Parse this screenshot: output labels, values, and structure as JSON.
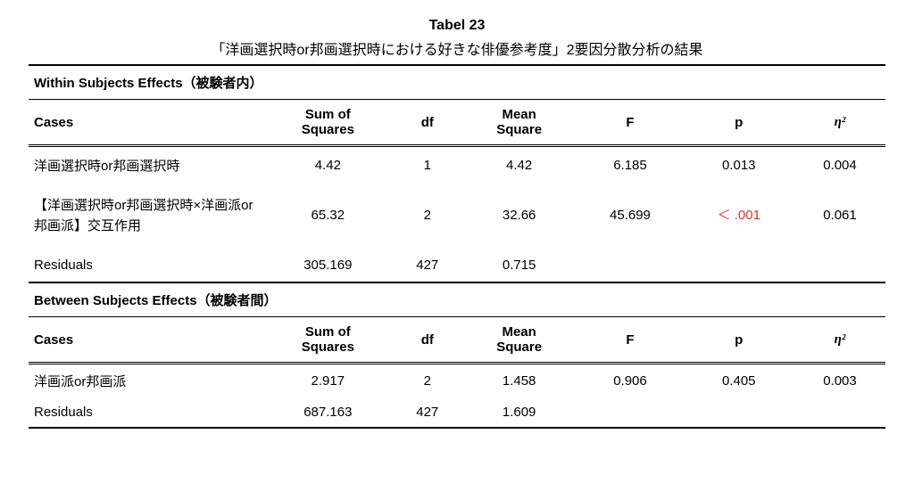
{
  "title_number": "Tabel 23",
  "caption": "「洋画選択時or邦画選択時における好きな俳優参考度」2要因分散分析の結果",
  "sections": {
    "within_title": "Within Subjects Effects（被験者内）",
    "between_title": "Between Subjects Effects（被験者間）"
  },
  "headers": {
    "cases": "Cases",
    "ss_line1": "Sum of",
    "ss_line2": "Squares",
    "df": "df",
    "ms_line1": "Mean",
    "ms_line2": "Square",
    "F": "F",
    "p": "p",
    "eta": "η²"
  },
  "within_rows": [
    {
      "cases": "洋画選択時or邦画選択時",
      "ss": "4.42",
      "df": "1",
      "ms": "4.42",
      "F": "6.185",
      "p": "0.013",
      "eta": "0.004",
      "sig": false
    },
    {
      "cases": "【洋画選択時or邦画選択時×洋画派or邦画派】交互作用",
      "ss": "65.32",
      "df": "2",
      "ms": "32.66",
      "F": "45.699",
      "p": "＜ .001",
      "eta": "0.061",
      "sig": true
    },
    {
      "cases": "Residuals",
      "ss": "305.169",
      "df": "427",
      "ms": "0.715",
      "F": "",
      "p": "",
      "eta": "",
      "sig": false
    }
  ],
  "between_rows": [
    {
      "cases": "洋画派or邦画派",
      "ss": "2.917",
      "df": "2",
      "ms": "1.458",
      "F": "0.906",
      "p": "0.405",
      "eta": "0.003",
      "sig": false
    },
    {
      "cases": "Residuals",
      "ss": "687.163",
      "df": "427",
      "ms": "1.609",
      "F": "",
      "p": "",
      "eta": "",
      "sig": false
    }
  ],
  "colors": {
    "text": "#000000",
    "sig": "#e03030",
    "bg": "#ffffff"
  }
}
